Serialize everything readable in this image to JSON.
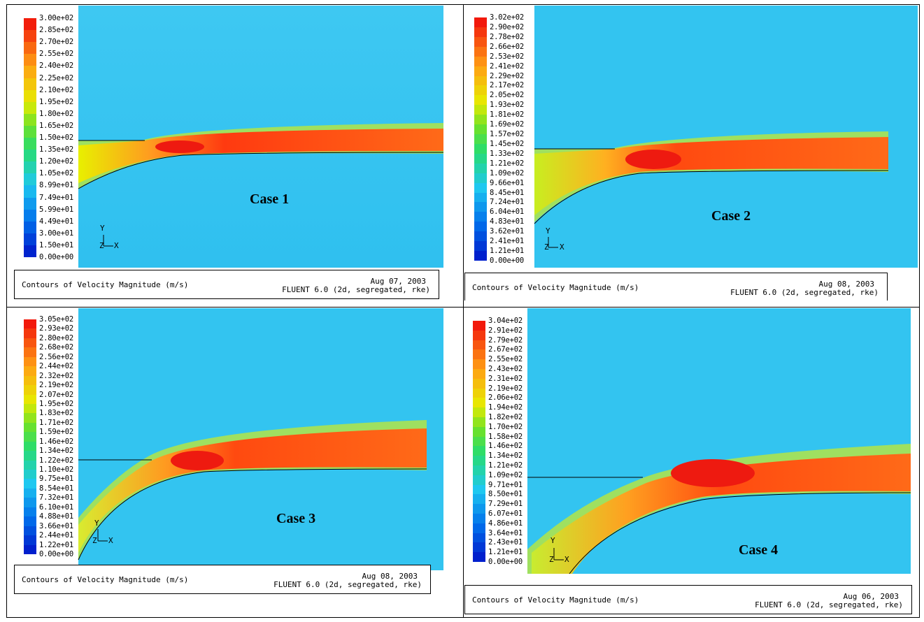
{
  "panels": [
    {
      "case_label": "Case 1",
      "legend_ticks": [
        "3.00e+02",
        "2.85e+02",
        "2.70e+02",
        "2.55e+02",
        "2.40e+02",
        "2.25e+02",
        "2.10e+02",
        "1.95e+02",
        "1.80e+02",
        "1.65e+02",
        "1.50e+02",
        "1.35e+02",
        "1.20e+02",
        "1.05e+02",
        "8.99e+01",
        "7.49e+01",
        "5.99e+01",
        "4.49e+01",
        "3.00e+01",
        "1.50e+01",
        "0.00e+00"
      ],
      "caption_title": "Contours of Velocity Magnitude (m/s)",
      "caption_date": "Aug 07, 2003",
      "caption_solver": "FLUENT 6.0 (2d, segregated, rke)"
    },
    {
      "case_label": "Case 2",
      "legend_ticks": [
        "3.02e+02",
        "2.90e+02",
        "2.78e+02",
        "2.66e+02",
        "2.53e+02",
        "2.41e+02",
        "2.29e+02",
        "2.17e+02",
        "2.05e+02",
        "1.93e+02",
        "1.81e+02",
        "1.69e+02",
        "1.57e+02",
        "1.45e+02",
        "1.33e+02",
        "1.21e+02",
        "1.09e+02",
        "9.66e+01",
        "8.45e+01",
        "7.24e+01",
        "6.04e+01",
        "4.83e+01",
        "3.62e+01",
        "2.41e+01",
        "1.21e+01",
        "0.00e+00"
      ],
      "caption_title": "Contours of Velocity Magnitude (m/s)",
      "caption_date": "Aug 08, 2003",
      "caption_solver": "FLUENT 6.0 (2d, segregated, rke)"
    },
    {
      "case_label": "Case 3",
      "legend_ticks": [
        "3.05e+02",
        "2.93e+02",
        "2.80e+02",
        "2.68e+02",
        "2.56e+02",
        "2.44e+02",
        "2.32e+02",
        "2.19e+02",
        "2.07e+02",
        "1.95e+02",
        "1.83e+02",
        "1.71e+02",
        "1.59e+02",
        "1.46e+02",
        "1.34e+02",
        "1.22e+02",
        "1.10e+02",
        "9.75e+01",
        "8.54e+01",
        "7.32e+01",
        "6.10e+01",
        "4.88e+01",
        "3.66e+01",
        "2.44e+01",
        "1.22e+01",
        "0.00e+00"
      ],
      "caption_title": "Contours of Velocity Magnitude (m/s)",
      "caption_date": "Aug 08, 2003",
      "caption_solver": "FLUENT 6.0 (2d, segregated, rke)"
    },
    {
      "case_label": "Case 4",
      "legend_ticks": [
        "3.04e+02",
        "2.91e+02",
        "2.79e+02",
        "2.67e+02",
        "2.55e+02",
        "2.43e+02",
        "2.31e+02",
        "2.19e+02",
        "2.06e+02",
        "1.94e+02",
        "1.82e+02",
        "1.70e+02",
        "1.58e+02",
        "1.46e+02",
        "1.34e+02",
        "1.21e+02",
        "1.09e+02",
        "9.71e+01",
        "8.50e+01",
        "7.29e+01",
        "6.07e+01",
        "4.86e+01",
        "3.64e+01",
        "2.43e+01",
        "1.21e+01",
        "0.00e+00"
      ],
      "caption_title": "Contours of Velocity Magnitude (m/s)",
      "caption_date": "Aug 06, 2003",
      "caption_solver": "FLUENT 6.0 (2d, segregated, rke)"
    }
  ],
  "axes_triad": {
    "y": "Y",
    "x": "X",
    "z": "Z"
  },
  "colors": {
    "background_flow": "#33c4f0",
    "jet_core": "#ff2a10",
    "jet_mid": "#ff8a20",
    "jet_low": "#f5e800",
    "wall": "#000000"
  }
}
